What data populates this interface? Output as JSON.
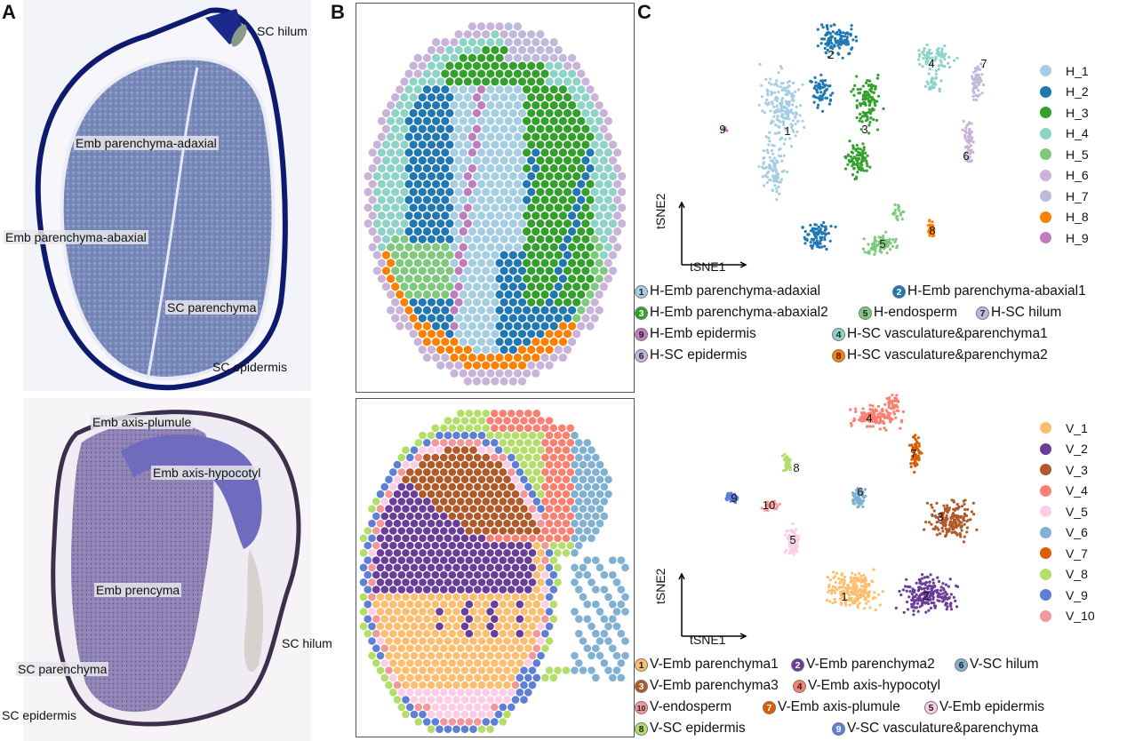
{
  "panels": {
    "A": {
      "letter": "A",
      "top_labels": [
        "SC hilum",
        "Emb parenchyma-adaxial",
        "Emb parenchyma-abaxial",
        "SC parenchyma",
        "SC epidermis"
      ],
      "bottom_labels": [
        "Emb axis-plumule",
        "Emb axis-hypocotyl",
        "Emb prencyma",
        "SC hilum",
        "SC parenchyma",
        "SC epidermis"
      ]
    },
    "B": {
      "letter": "B"
    },
    "C": {
      "letter": "C"
    }
  },
  "tsne_axes": {
    "x": "tSNE1",
    "y": "tSNE2"
  },
  "H": {
    "clusters": [
      {
        "id": "1",
        "legend": "H_1",
        "color": "#a6cee3",
        "name": "H-Emb parenchyma-adaxial"
      },
      {
        "id": "2",
        "legend": "H_2",
        "color": "#1f78b4",
        "name": "H-Emb parenchyma-abaxial1"
      },
      {
        "id": "3",
        "legend": "H_3",
        "color": "#33a02c",
        "name": "H-Emb parenchyma-abaxial2"
      },
      {
        "id": "4",
        "legend": "H_4",
        "color": "#8dd3c7",
        "name": "H-SC vasculature&parenchyma1"
      },
      {
        "id": "5",
        "legend": "H_5",
        "color": "#7fc97f",
        "name": "H-endosperm"
      },
      {
        "id": "6",
        "legend": "H_6",
        "color": "#c9b3d8",
        "name": "H-SC epidermis"
      },
      {
        "id": "7",
        "legend": "H_7",
        "color": "#bebada",
        "name": "H-SC hilum"
      },
      {
        "id": "8",
        "legend": "H_8",
        "color": "#ff7f00",
        "name": "H-SC vasculature&parenchyma2"
      },
      {
        "id": "9",
        "legend": "H_9",
        "color": "#c07cc0",
        "name": "H-Emb epidermis"
      }
    ],
    "legend_order": [
      "1",
      "2",
      "3",
      "5",
      "7",
      "9",
      "4",
      "6",
      "8"
    ]
  },
  "V": {
    "clusters": [
      {
        "id": "1",
        "legend": "V_1",
        "color": "#fdbf6f",
        "name": "V-Emb parenchyma1"
      },
      {
        "id": "2",
        "legend": "V_2",
        "color": "#6a3d9a",
        "name": "V-Emb parenchyma2"
      },
      {
        "id": "3",
        "legend": "V_3",
        "color": "#b15928",
        "name": "V-Emb parenchyma3"
      },
      {
        "id": "4",
        "legend": "V_4",
        "color": "#fb8072",
        "name": "V-Emb axis-hypocotyl"
      },
      {
        "id": "5",
        "legend": "V_5",
        "color": "#fccde5",
        "name": "V-Emb epidermis"
      },
      {
        "id": "6",
        "legend": "V_6",
        "color": "#80b1d3",
        "name": "V-SC hilum"
      },
      {
        "id": "7",
        "legend": "V_7",
        "color": "#d95f02",
        "name": "V-Emb axis-plumule"
      },
      {
        "id": "8",
        "legend": "V_8",
        "color": "#b3de69",
        "name": "V-SC epidermis"
      },
      {
        "id": "9",
        "legend": "V_9",
        "color": "#5e7fd6",
        "name": "V-SC vasculature&parenchyma"
      },
      {
        "id": "10",
        "legend": "V_10",
        "color": "#f4979a",
        "name": "V-endosperm"
      }
    ]
  }
}
